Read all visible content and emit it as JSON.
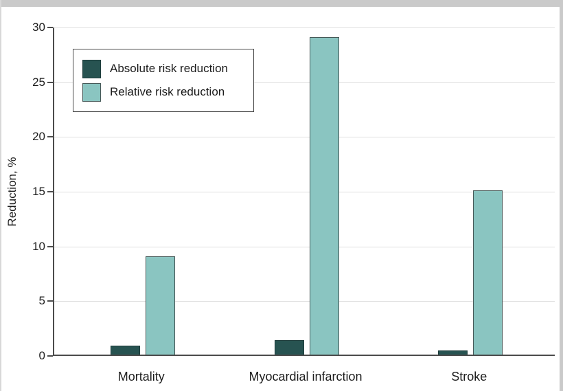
{
  "figure": {
    "background": "#ffffff",
    "frame_color": "#cacaca"
  },
  "chart_data": {
    "type": "bar",
    "title": "",
    "categories": [
      "Mortality",
      "Myocardial infarction",
      "Stroke"
    ],
    "series": [
      {
        "name": "Absolute risk reduction",
        "color": "#275351",
        "border": "#1e3c3b",
        "values": [
          0.8,
          1.3,
          0.4
        ]
      },
      {
        "name": "Relative risk reduction",
        "color": "#8ac5c1",
        "border": "#465857",
        "values": [
          9,
          29,
          15
        ]
      }
    ],
    "xlabel": "",
    "ylabel": "Reduction, %",
    "ylim": [
      0,
      30
    ],
    "yticks": [
      0,
      5,
      10,
      15,
      20,
      25,
      30
    ],
    "grid": true,
    "gridline_color": "#dedede",
    "axis_color": "#4b4b4b",
    "legend_position": "upper-left-inside"
  }
}
